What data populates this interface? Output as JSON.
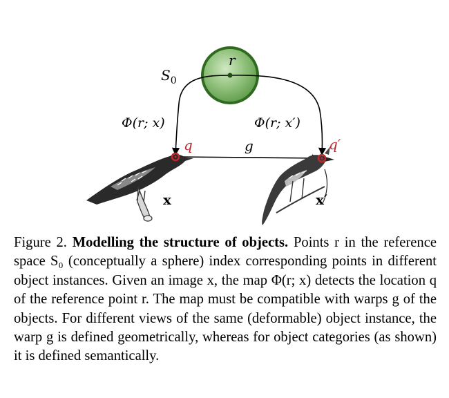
{
  "figure": {
    "labels": {
      "r": "r",
      "s0": "S",
      "s0_sub": "0",
      "phi_x": "Φ(r; x)",
      "phi_x_prime": "Φ(r; x′)",
      "q": "q",
      "q_prime": "q′",
      "g": "g",
      "x": "x",
      "x_prime": "x′"
    },
    "colors": {
      "sphere_fill": "#8fc07a",
      "sphere_stroke": "#2f6b1f",
      "point_red": "#c0272d",
      "point_green": "#1f4d14"
    }
  },
  "caption": {
    "label": "Figure 2.",
    "title": "Modelling the structure of objects.",
    "body": "Points r in the reference space S₀ (conceptually a sphere) index corresponding points in different object instances. Given an image x, the map Φ(r; x) detects the location q of the reference point r. The map must be compatible with warps g of the objects. For different views of the same (deformable) object instance, the warp g is defined geometrically, whereas for object categories (as shown) it is defined semantically."
  }
}
